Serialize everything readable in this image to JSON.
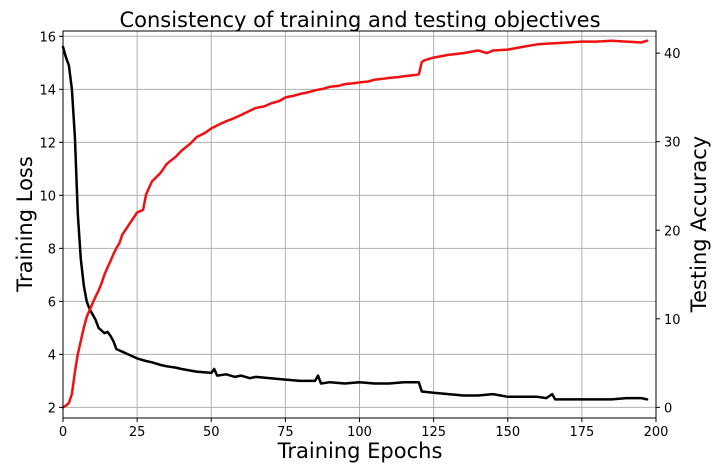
{
  "chart_data": {
    "type": "line",
    "title": "Consistency of training and testing objectives",
    "xlabel": "Training Epochs",
    "ylabel_left": "Training Loss",
    "ylabel_right": "Testing Accuracy",
    "xlim": [
      0,
      200
    ],
    "ylim_left": [
      1.6,
      16.2
    ],
    "ylim_right": [
      -1.2,
      42.5
    ],
    "xticks": [
      0,
      25,
      50,
      75,
      100,
      125,
      150,
      175,
      200
    ],
    "yticks_left": [
      2,
      4,
      6,
      8,
      10,
      12,
      14,
      16
    ],
    "yticks_right": [
      0,
      10,
      20,
      30,
      40
    ],
    "grid": true,
    "legend": "none",
    "series": [
      {
        "axis": "left",
        "color": "#000000",
        "x": [
          0,
          1,
          2,
          3,
          4,
          5,
          6,
          7,
          8,
          9,
          10,
          11,
          12,
          13,
          14,
          15,
          16,
          17,
          18,
          19,
          20,
          22,
          25,
          28,
          30,
          33,
          35,
          38,
          40,
          45,
          50,
          51,
          52,
          55,
          58,
          60,
          63,
          65,
          70,
          75,
          80,
          85,
          86,
          87,
          90,
          95,
          100,
          105,
          110,
          115,
          120,
          121,
          125,
          130,
          135,
          140,
          145,
          150,
          155,
          160,
          163,
          165,
          166,
          170,
          175,
          180,
          185,
          190,
          195,
          197
        ],
        "values": [
          15.6,
          15.2,
          14.9,
          14.0,
          12.2,
          9.3,
          7.6,
          6.6,
          6.0,
          5.7,
          5.5,
          5.3,
          5.0,
          4.9,
          4.8,
          4.85,
          4.7,
          4.5,
          4.2,
          4.15,
          4.1,
          4.0,
          3.85,
          3.75,
          3.7,
          3.6,
          3.55,
          3.5,
          3.45,
          3.35,
          3.3,
          3.45,
          3.2,
          3.25,
          3.15,
          3.2,
          3.1,
          3.15,
          3.1,
          3.05,
          3.0,
          3.0,
          3.2,
          2.9,
          2.95,
          2.9,
          2.95,
          2.9,
          2.9,
          2.95,
          2.95,
          2.6,
          2.55,
          2.5,
          2.45,
          2.45,
          2.5,
          2.4,
          2.4,
          2.4,
          2.35,
          2.5,
          2.3,
          2.3,
          2.3,
          2.3,
          2.3,
          2.35,
          2.35,
          2.3
        ]
      },
      {
        "axis": "right",
        "color": "#ee1111",
        "x": [
          0,
          1,
          2,
          3,
          4,
          5,
          6,
          7,
          8,
          9,
          10,
          11,
          12,
          13,
          14,
          15,
          16,
          17,
          18,
          19,
          20,
          22,
          25,
          27,
          28,
          30,
          33,
          35,
          38,
          40,
          43,
          45,
          48,
          50,
          53,
          55,
          58,
          60,
          63,
          65,
          68,
          70,
          73,
          75,
          78,
          80,
          83,
          85,
          88,
          90,
          93,
          95,
          98,
          100,
          103,
          105,
          108,
          110,
          113,
          115,
          118,
          120,
          121,
          122,
          125,
          130,
          135,
          140,
          143,
          145,
          150,
          155,
          160,
          165,
          170,
          175,
          180,
          185,
          190,
          195,
          197
        ],
        "values": [
          0.0,
          0.2,
          0.5,
          1.5,
          4.0,
          6.0,
          7.5,
          9.0,
          10.2,
          11.0,
          11.8,
          12.5,
          13.2,
          14.0,
          15.0,
          15.8,
          16.5,
          17.3,
          18.0,
          18.5,
          19.5,
          20.5,
          22.0,
          22.3,
          24.0,
          25.5,
          26.5,
          27.5,
          28.3,
          29.0,
          29.8,
          30.5,
          31.0,
          31.5,
          32.0,
          32.3,
          32.7,
          33.0,
          33.5,
          33.8,
          34.0,
          34.3,
          34.6,
          35.0,
          35.2,
          35.4,
          35.6,
          35.8,
          36.0,
          36.2,
          36.3,
          36.5,
          36.6,
          36.7,
          36.8,
          37.0,
          37.1,
          37.2,
          37.3,
          37.4,
          37.5,
          37.6,
          39.0,
          39.2,
          39.5,
          39.8,
          40.0,
          40.3,
          40.0,
          40.3,
          40.4,
          40.7,
          41.0,
          41.1,
          41.2,
          41.3,
          41.3,
          41.4,
          41.3,
          41.2,
          41.4
        ]
      }
    ]
  }
}
